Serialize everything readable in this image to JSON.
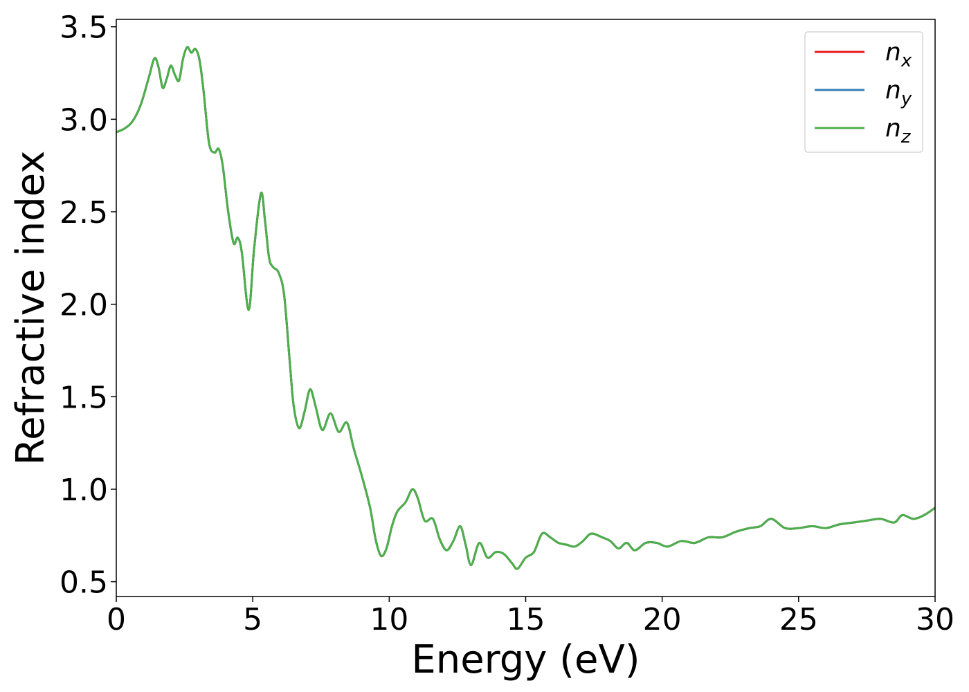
{
  "chart_data": {
    "type": "line",
    "title": "",
    "xlabel": "Energy (eV)",
    "ylabel": "Refractive index",
    "xlim": [
      0,
      30
    ],
    "ylim": [
      0.42,
      3.54
    ],
    "xticks": [
      0,
      5,
      10,
      15,
      20,
      25,
      30
    ],
    "yticks": [
      0.5,
      1.0,
      1.5,
      2.0,
      2.5,
      3.0,
      3.5
    ],
    "xtick_labels": [
      "0",
      "5",
      "10",
      "15",
      "20",
      "25",
      "30"
    ],
    "ytick_labels": [
      "0.5",
      "1.0",
      "1.5",
      "2.0",
      "2.5",
      "3.0",
      "3.5"
    ],
    "grid": false,
    "legend_position": "top-right",
    "series": [
      {
        "name": "n_x",
        "label_base": "n",
        "label_sub": "x",
        "color": "#e41a1c",
        "x": [
          0,
          0.3,
          0.6,
          0.9,
          1.2,
          1.4,
          1.55,
          1.7,
          1.85,
          2.0,
          2.15,
          2.3,
          2.45,
          2.6,
          2.75,
          2.9,
          3.05,
          3.2,
          3.4,
          3.6,
          3.75,
          3.9,
          4.1,
          4.3,
          4.45,
          4.6,
          4.85,
          5.05,
          5.3,
          5.45,
          5.6,
          5.75,
          5.95,
          6.15,
          6.35,
          6.5,
          6.7,
          6.9,
          7.1,
          7.3,
          7.55,
          7.85,
          8.15,
          8.45,
          8.7,
          9.0,
          9.3,
          9.5,
          9.7,
          9.9,
          10.1,
          10.3,
          10.6,
          10.85,
          11.05,
          11.3,
          11.6,
          11.85,
          12.1,
          12.35,
          12.6,
          12.8,
          13.0,
          13.3,
          13.6,
          13.9,
          14.2,
          14.5,
          14.7,
          15.0,
          15.3,
          15.6,
          15.9,
          16.2,
          16.5,
          16.8,
          17.1,
          17.4,
          17.8,
          18.1,
          18.4,
          18.7,
          19.0,
          19.4,
          19.8,
          20.2,
          20.7,
          21.2,
          21.7,
          22.2,
          22.7,
          23.2,
          23.6,
          24.0,
          24.5,
          25.0,
          25.5,
          26.0,
          26.5,
          27.0,
          27.5,
          28.0,
          28.5,
          28.8,
          29.2,
          29.6,
          30.0
        ],
        "y": [
          2.93,
          2.95,
          2.99,
          3.08,
          3.23,
          3.33,
          3.28,
          3.17,
          3.22,
          3.29,
          3.24,
          3.21,
          3.33,
          3.39,
          3.36,
          3.38,
          3.32,
          3.15,
          2.87,
          2.82,
          2.84,
          2.75,
          2.5,
          2.33,
          2.36,
          2.28,
          1.97,
          2.3,
          2.6,
          2.45,
          2.25,
          2.2,
          2.17,
          2.05,
          1.7,
          1.45,
          1.33,
          1.42,
          1.54,
          1.45,
          1.32,
          1.41,
          1.31,
          1.36,
          1.22,
          1.07,
          0.9,
          0.73,
          0.64,
          0.68,
          0.8,
          0.88,
          0.93,
          1.0,
          0.95,
          0.83,
          0.84,
          0.73,
          0.67,
          0.72,
          0.8,
          0.7,
          0.59,
          0.71,
          0.63,
          0.66,
          0.65,
          0.6,
          0.57,
          0.63,
          0.66,
          0.76,
          0.74,
          0.71,
          0.7,
          0.69,
          0.72,
          0.76,
          0.74,
          0.72,
          0.68,
          0.71,
          0.67,
          0.71,
          0.71,
          0.69,
          0.72,
          0.71,
          0.74,
          0.74,
          0.77,
          0.79,
          0.8,
          0.84,
          0.79,
          0.79,
          0.8,
          0.79,
          0.81,
          0.82,
          0.83,
          0.84,
          0.82,
          0.86,
          0.84,
          0.86,
          0.9
        ]
      },
      {
        "name": "n_y",
        "label_base": "n",
        "label_sub": "y",
        "color": "#377eb8",
        "x": [
          0,
          0.3,
          0.6,
          0.9,
          1.2,
          1.4,
          1.55,
          1.7,
          1.85,
          2.0,
          2.15,
          2.3,
          2.45,
          2.6,
          2.75,
          2.9,
          3.05,
          3.2,
          3.4,
          3.6,
          3.75,
          3.9,
          4.1,
          4.3,
          4.45,
          4.6,
          4.85,
          5.05,
          5.3,
          5.45,
          5.6,
          5.75,
          5.95,
          6.15,
          6.35,
          6.5,
          6.7,
          6.9,
          7.1,
          7.3,
          7.55,
          7.85,
          8.15,
          8.45,
          8.7,
          9.0,
          9.3,
          9.5,
          9.7,
          9.9,
          10.1,
          10.3,
          10.6,
          10.85,
          11.05,
          11.3,
          11.6,
          11.85,
          12.1,
          12.35,
          12.6,
          12.8,
          13.0,
          13.3,
          13.6,
          13.9,
          14.2,
          14.5,
          14.7,
          15.0,
          15.3,
          15.6,
          15.9,
          16.2,
          16.5,
          16.8,
          17.1,
          17.4,
          17.8,
          18.1,
          18.4,
          18.7,
          19.0,
          19.4,
          19.8,
          20.2,
          20.7,
          21.2,
          21.7,
          22.2,
          22.7,
          23.2,
          23.6,
          24.0,
          24.5,
          25.0,
          25.5,
          26.0,
          26.5,
          27.0,
          27.5,
          28.0,
          28.5,
          28.8,
          29.2,
          29.6,
          30.0
        ],
        "y": [
          2.93,
          2.95,
          2.99,
          3.08,
          3.23,
          3.33,
          3.28,
          3.17,
          3.22,
          3.29,
          3.24,
          3.21,
          3.33,
          3.39,
          3.36,
          3.38,
          3.32,
          3.15,
          2.87,
          2.82,
          2.84,
          2.75,
          2.5,
          2.33,
          2.36,
          2.28,
          1.97,
          2.3,
          2.6,
          2.45,
          2.25,
          2.2,
          2.17,
          2.05,
          1.7,
          1.45,
          1.33,
          1.42,
          1.54,
          1.45,
          1.32,
          1.41,
          1.31,
          1.36,
          1.22,
          1.07,
          0.9,
          0.73,
          0.64,
          0.68,
          0.8,
          0.88,
          0.93,
          1.0,
          0.95,
          0.83,
          0.84,
          0.73,
          0.67,
          0.72,
          0.8,
          0.7,
          0.59,
          0.71,
          0.63,
          0.66,
          0.65,
          0.6,
          0.57,
          0.63,
          0.66,
          0.76,
          0.74,
          0.71,
          0.7,
          0.69,
          0.72,
          0.76,
          0.74,
          0.72,
          0.68,
          0.71,
          0.67,
          0.71,
          0.71,
          0.69,
          0.72,
          0.71,
          0.74,
          0.74,
          0.77,
          0.79,
          0.8,
          0.84,
          0.79,
          0.79,
          0.8,
          0.79,
          0.81,
          0.82,
          0.83,
          0.84,
          0.82,
          0.86,
          0.84,
          0.86,
          0.9
        ]
      },
      {
        "name": "n_z",
        "label_base": "n",
        "label_sub": "z",
        "color": "#4daf4a",
        "x": [
          0,
          0.3,
          0.6,
          0.9,
          1.2,
          1.4,
          1.55,
          1.7,
          1.85,
          2.0,
          2.15,
          2.3,
          2.45,
          2.6,
          2.75,
          2.9,
          3.05,
          3.2,
          3.4,
          3.6,
          3.75,
          3.9,
          4.1,
          4.3,
          4.45,
          4.6,
          4.85,
          5.05,
          5.3,
          5.45,
          5.6,
          5.75,
          5.95,
          6.15,
          6.35,
          6.5,
          6.7,
          6.9,
          7.1,
          7.3,
          7.55,
          7.85,
          8.15,
          8.45,
          8.7,
          9.0,
          9.3,
          9.5,
          9.7,
          9.9,
          10.1,
          10.3,
          10.6,
          10.85,
          11.05,
          11.3,
          11.6,
          11.85,
          12.1,
          12.35,
          12.6,
          12.8,
          13.0,
          13.3,
          13.6,
          13.9,
          14.2,
          14.5,
          14.7,
          15.0,
          15.3,
          15.6,
          15.9,
          16.2,
          16.5,
          16.8,
          17.1,
          17.4,
          17.8,
          18.1,
          18.4,
          18.7,
          19.0,
          19.4,
          19.8,
          20.2,
          20.7,
          21.2,
          21.7,
          22.2,
          22.7,
          23.2,
          23.6,
          24.0,
          24.5,
          25.0,
          25.5,
          26.0,
          26.5,
          27.0,
          27.5,
          28.0,
          28.5,
          28.8,
          29.2,
          29.6,
          30.0
        ],
        "y": [
          2.93,
          2.95,
          2.99,
          3.08,
          3.23,
          3.33,
          3.28,
          3.17,
          3.22,
          3.29,
          3.24,
          3.21,
          3.33,
          3.39,
          3.36,
          3.38,
          3.32,
          3.15,
          2.87,
          2.82,
          2.84,
          2.75,
          2.5,
          2.33,
          2.36,
          2.28,
          1.97,
          2.3,
          2.6,
          2.45,
          2.25,
          2.2,
          2.17,
          2.05,
          1.7,
          1.45,
          1.33,
          1.42,
          1.54,
          1.45,
          1.32,
          1.41,
          1.31,
          1.36,
          1.22,
          1.07,
          0.9,
          0.73,
          0.64,
          0.68,
          0.8,
          0.88,
          0.93,
          1.0,
          0.95,
          0.83,
          0.84,
          0.73,
          0.67,
          0.72,
          0.8,
          0.7,
          0.59,
          0.71,
          0.63,
          0.66,
          0.65,
          0.6,
          0.57,
          0.63,
          0.66,
          0.76,
          0.74,
          0.71,
          0.7,
          0.69,
          0.72,
          0.76,
          0.74,
          0.72,
          0.68,
          0.71,
          0.67,
          0.71,
          0.71,
          0.69,
          0.72,
          0.71,
          0.74,
          0.74,
          0.77,
          0.79,
          0.8,
          0.84,
          0.79,
          0.79,
          0.8,
          0.79,
          0.81,
          0.82,
          0.83,
          0.84,
          0.82,
          0.86,
          0.84,
          0.86,
          0.9
        ]
      }
    ]
  }
}
